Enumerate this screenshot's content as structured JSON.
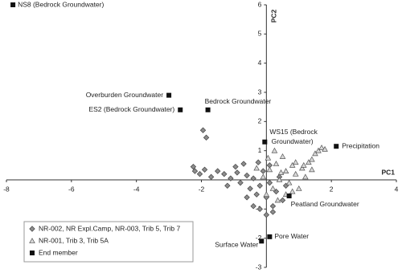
{
  "chart_data": {
    "type": "scatter",
    "xlabel": "PC1",
    "ylabel": "PC2",
    "xlim": [
      -8,
      4
    ],
    "ylim": [
      -3,
      6
    ],
    "xticks": [
      -8,
      -6,
      -4,
      -2,
      2,
      4
    ],
    "yticks": [
      6,
      5,
      4,
      3,
      2,
      1,
      -1,
      -2,
      -3
    ],
    "legend": "bottom-left",
    "series": [
      {
        "name": "NR-002, NR Expl.Camp, NR-003, Trib 5, Trib 7",
        "marker": "diamond",
        "color": "#8c8c8c",
        "x": [
          -1.95,
          -1.85,
          -2.25,
          -2.2,
          -2.05,
          -1.9,
          -1.7,
          -1.5,
          -1.3,
          -1.1,
          -0.9,
          -0.8,
          -0.6,
          -0.5,
          -0.4,
          -0.3,
          -0.2,
          -0.1,
          0.0,
          0.1,
          0.2,
          0.3,
          0.4,
          0.5,
          -0.6,
          -0.4,
          -0.2,
          0.0,
          0.2,
          -1.2,
          -0.95,
          -0.7,
          -0.25,
          0.1,
          0.6
        ],
        "values": [
          1.7,
          1.45,
          0.45,
          0.3,
          0.2,
          0.35,
          0.1,
          0.3,
          0.2,
          0.05,
          0.25,
          -0.1,
          0.15,
          -0.3,
          0.05,
          -0.5,
          -0.2,
          0.3,
          -0.6,
          -0.1,
          -0.9,
          -0.4,
          0.1,
          -0.7,
          -0.6,
          -0.9,
          -1.0,
          -1.2,
          -1.1,
          -0.2,
          0.45,
          0.55,
          0.6,
          0.5,
          -0.2
        ]
      },
      {
        "name": "NR-001, Trib 3, Trib 5A",
        "marker": "triangle",
        "color": "#d9d9d9",
        "x": [
          -0.1,
          0.1,
          0.3,
          0.4,
          0.5,
          0.6,
          0.7,
          0.8,
          0.9,
          1.0,
          1.1,
          1.2,
          1.3,
          1.4,
          1.5,
          1.6,
          1.7,
          1.8,
          1.4,
          0.2,
          0.0,
          0.35,
          0.6,
          0.8,
          -0.3,
          0.25,
          0.05,
          0.9,
          1.15,
          0.45
        ],
        "values": [
          0.1,
          0.35,
          0.55,
          0.0,
          0.8,
          0.3,
          -0.1,
          0.5,
          0.2,
          -0.3,
          0.4,
          0.1,
          0.6,
          0.7,
          0.9,
          1.0,
          1.1,
          1.05,
          0.35,
          -0.3,
          -0.5,
          -0.7,
          -0.5,
          -0.4,
          0.4,
          1.0,
          0.75,
          0.6,
          0.5,
          0.25
        ]
      },
      {
        "name": "End member",
        "marker": "square",
        "color": "#111111",
        "x": [
          -7.8,
          -3.0,
          -2.65,
          -1.8,
          -0.05,
          2.15,
          0.7,
          0.1,
          -0.15
        ],
        "values": [
          6.0,
          2.9,
          2.4,
          2.4,
          1.3,
          1.15,
          -0.55,
          -1.95,
          -2.1
        ],
        "labels": [
          "NS8 (Bedrock Groundwater)",
          "Overburden Groundwater",
          "ES2 (Bedrock Groundwater)",
          "Bedrock Groundwater",
          "WS15 (Bedrock Groundwater)",
          "Precipitation",
          "Peatland Groundwater",
          "Pore Water",
          "Surface Water"
        ]
      }
    ]
  }
}
